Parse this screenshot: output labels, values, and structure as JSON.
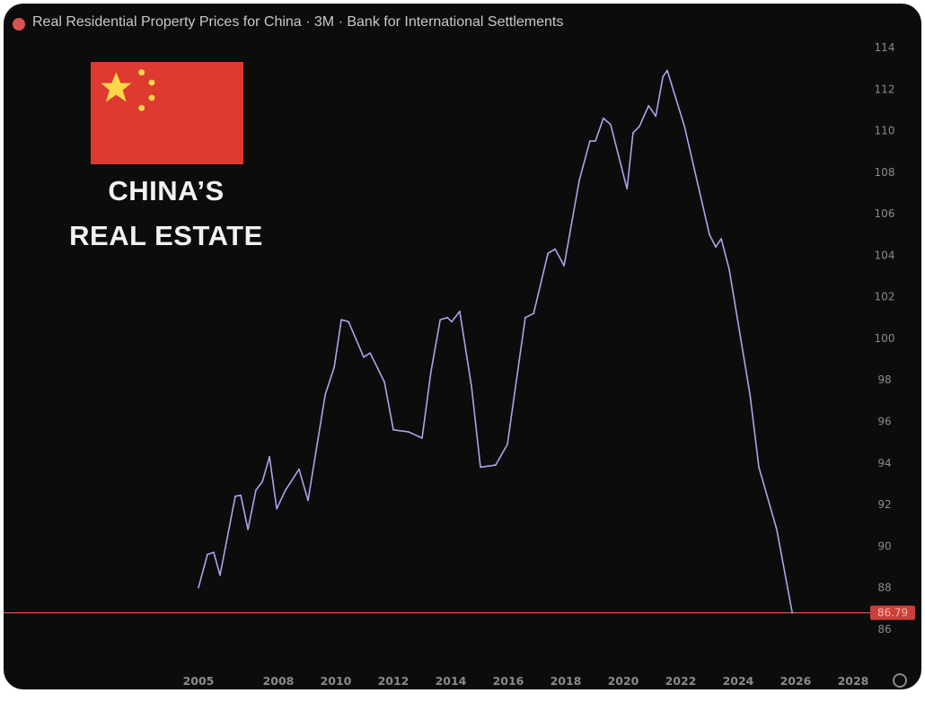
{
  "header": {
    "title": "Real Residential Property Prices for China · 3M · Bank for International Settlements"
  },
  "overlay": {
    "headline_line1": "CHINA’S",
    "headline_line2": "REAL ESTATE",
    "flag": "china-flag"
  },
  "colors": {
    "background": "#0c0c0d",
    "line": "#a9a6ea",
    "price_line": "#e0504a",
    "price_label_bg": "#c9403b",
    "flag_red": "#de3a2f",
    "flag_star": "#ffd84a"
  },
  "chart_data": {
    "type": "line",
    "title": "Real Residential Property Prices for China · 3M · Bank for International Settlements",
    "xlim": [
      1998.3,
      2028.5
    ],
    "ylim": [
      84.5,
      116.3
    ],
    "x_ticks": [
      "2005",
      "2008",
      "2010",
      "2012",
      "2014",
      "2016",
      "2018",
      "2020",
      "2022",
      "2024",
      "2026",
      "2028"
    ],
    "y_ticks": [
      86,
      88,
      90,
      92,
      94,
      96,
      98,
      100,
      102,
      104,
      106,
      108,
      110,
      112,
      114
    ],
    "grid": false,
    "current_value": 86.79,
    "current_value_label": "86.79",
    "series": [
      {
        "x": [
          2005.22,
          2005.53,
          2005.75,
          2005.97,
          2006.5,
          2006.69,
          2006.94,
          2007.22,
          2007.44,
          2007.69,
          2007.94,
          2008.25,
          2008.72,
          2009.03,
          2009.63,
          2009.94,
          2010.19,
          2010.44,
          2010.97,
          2011.19,
          2011.69,
          2012.0,
          2012.53,
          2013.0,
          2013.31,
          2013.63,
          2013.88,
          2014.03,
          2014.31,
          2014.72,
          2015.03,
          2015.56,
          2015.97,
          2016.59,
          2016.88,
          2017.38,
          2017.63,
          2017.94,
          2018.47,
          2018.84,
          2019.03,
          2019.31,
          2019.56,
          2020.13,
          2020.34,
          2020.56,
          2020.88,
          2021.13,
          2021.38,
          2021.53,
          2022.13,
          2023.0,
          2023.22,
          2023.41,
          2023.69,
          2024.41,
          2024.72,
          2025.34,
          2025.88
        ],
        "y": [
          88.0,
          89.6,
          89.7,
          88.6,
          92.4,
          92.45,
          90.8,
          92.7,
          93.1,
          94.3,
          91.8,
          92.7,
          93.7,
          92.2,
          97.3,
          98.6,
          100.9,
          100.8,
          99.1,
          99.3,
          97.9,
          95.6,
          95.5,
          95.2,
          98.4,
          100.9,
          101.0,
          100.8,
          101.3,
          97.7,
          93.8,
          93.9,
          94.9,
          101.0,
          101.2,
          104.1,
          104.3,
          103.5,
          107.6,
          109.5,
          109.5,
          110.6,
          110.3,
          107.2,
          109.9,
          110.2,
          111.2,
          110.7,
          112.6,
          112.9,
          110.2,
          105.0,
          104.4,
          104.8,
          103.3,
          97.3,
          93.8,
          90.8,
          86.79
        ]
      }
    ]
  }
}
